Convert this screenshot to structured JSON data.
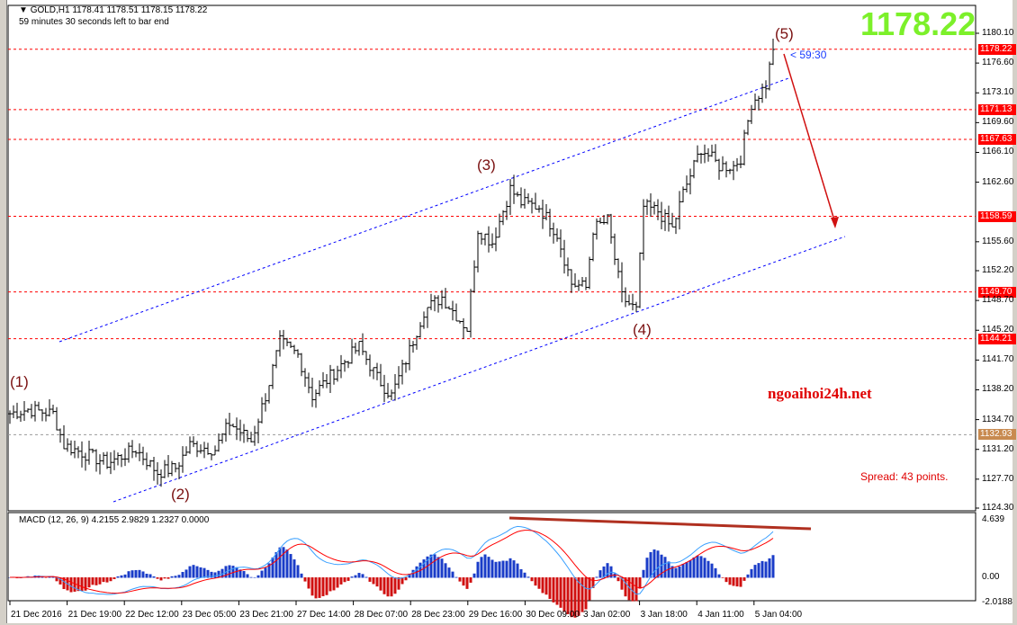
{
  "header": {
    "symbol_line": "GOLD,H1  1178.41 1178.51 1178.15 1178.22",
    "timer_line": "59 minutes 30 seconds left to bar end"
  },
  "big_price": "1178.22",
  "bar_timer": "< 59:30",
  "watermark": "ngoaihoi24h.net",
  "spread": "Spread: 43 points.",
  "waves": [
    "(1)",
    "(2)",
    "(3)",
    "(4)",
    "(5)"
  ],
  "price_axis": [
    "1180.10",
    "1176.60",
    "1173.10",
    "1169.60",
    "1166.10",
    "1162.60",
    "1155.60",
    "1152.20",
    "1148.70",
    "1145.20",
    "1141.70",
    "1138.20",
    "1134.70",
    "1131.20",
    "1127.70",
    "1124.30"
  ],
  "levels": [
    {
      "label": "1178.22",
      "color": "#ff0000"
    },
    {
      "label": "1171.13",
      "color": "#ff0000"
    },
    {
      "label": "1167.63",
      "color": "#ff0000"
    },
    {
      "label": "1158.59",
      "color": "#ff0000"
    },
    {
      "label": "1149.70",
      "color": "#ff0000"
    },
    {
      "label": "1144.21",
      "color": "#ff0000"
    },
    {
      "label": "1132.93",
      "color": "#c88a50"
    }
  ],
  "time_axis": [
    "21 Dec 2016",
    "21 Dec 19:00",
    "22 Dec 12:00",
    "23 Dec 05:00",
    "23 Dec 21:00",
    "27 Dec 14:00",
    "28 Dec 07:00",
    "28 Dec 23:00",
    "29 Dec 16:00",
    "30 Dec 09:00",
    "3 Jan 02:00",
    "3 Jan 18:00",
    "4 Jan 11:00",
    "5 Jan 04:00"
  ],
  "macd": {
    "label": "MACD (12, 26, 9) 4.2155 2.9829 1.2327 0.0000",
    "axis": [
      "4.639",
      "0.00",
      "-2.0188"
    ],
    "up_color": "#1a3cc8",
    "down_color": "#d01010"
  },
  "chart_data": {
    "type": "candlestick",
    "symbol": "GOLD",
    "timeframe": "H1",
    "ylim": [
      1124.3,
      1180.1
    ],
    "price_path": [
      [
        0,
        1135.4
      ],
      [
        5,
        1135.9
      ],
      [
        12,
        1135.4
      ],
      [
        15,
        1131.7
      ],
      [
        27,
        1129.6
      ],
      [
        35,
        1131.2
      ],
      [
        41,
        1128.5
      ],
      [
        46,
        1129.0
      ],
      [
        50,
        1131.7
      ],
      [
        57,
        1131.2
      ],
      [
        61,
        1134.3
      ],
      [
        67,
        1132.2
      ],
      [
        71,
        1137.5
      ],
      [
        75,
        1143.8
      ],
      [
        80,
        1142.3
      ],
      [
        84,
        1137.5
      ],
      [
        91,
        1140.7
      ],
      [
        97,
        1143.3
      ],
      [
        102,
        1139.6
      ],
      [
        106,
        1137.5
      ],
      [
        110,
        1141.7
      ],
      [
        115,
        1147.5
      ],
      [
        120,
        1149.1
      ],
      [
        127,
        1145.4
      ],
      [
        130,
        1157.1
      ],
      [
        134,
        1155.5
      ],
      [
        139,
        1161.8
      ],
      [
        142,
        1160.2
      ],
      [
        147,
        1159.7
      ],
      [
        152,
        1156.5
      ],
      [
        156,
        1150.7
      ],
      [
        160,
        1150.2
      ],
      [
        162,
        1157.1
      ],
      [
        166,
        1158.1
      ],
      [
        170,
        1149.1
      ],
      [
        174,
        1147.5
      ],
      [
        176,
        1159.7
      ],
      [
        180,
        1159.2
      ],
      [
        184,
        1157.1
      ],
      [
        187,
        1161.3
      ],
      [
        192,
        1166.6
      ],
      [
        197,
        1164.5
      ],
      [
        201,
        1164.5
      ],
      [
        203,
        1165.5
      ],
      [
        206,
        1171.9
      ],
      [
        210,
        1174.0
      ],
      [
        212,
        1178.2
      ]
    ]
  }
}
